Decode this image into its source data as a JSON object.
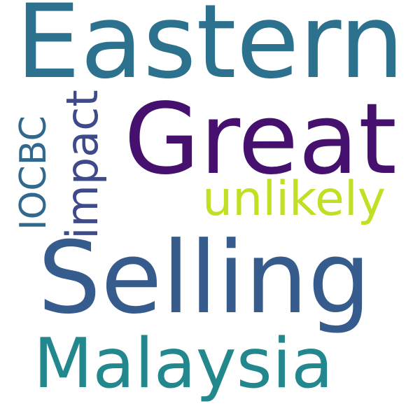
{
  "words": {
    "eastern": {
      "text": "Eastern",
      "color": "#2c728e"
    },
    "great": {
      "text": "Great",
      "color": "#46106f"
    },
    "unlikely": {
      "text": "unlikely",
      "color": "#c2df23"
    },
    "impact": {
      "text": "impact",
      "color": "#3e4a89"
    },
    "iocbc": {
      "text": "IOCBC",
      "color": "#31688e"
    },
    "selling": {
      "text": "Selling",
      "color": "#365c8d"
    },
    "malaysia": {
      "text": "Malaysia",
      "color": "#23888e"
    }
  }
}
